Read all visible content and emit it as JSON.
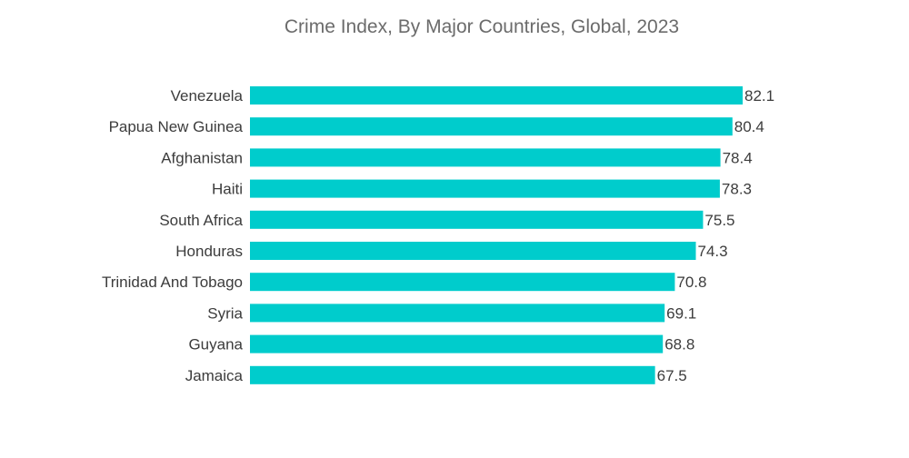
{
  "chart_data": {
    "type": "bar",
    "orientation": "horizontal",
    "title": "Crime Index, By Major Countries, Global, 2023",
    "categories": [
      "Venezuela",
      "Papua New Guinea",
      "Afghanistan",
      "Haiti",
      "South Africa",
      "Honduras",
      "Trinidad And Tobago",
      "Syria",
      "Guyana",
      "Jamaica"
    ],
    "values": [
      82.1,
      80.4,
      78.4,
      78.3,
      75.5,
      74.3,
      70.8,
      69.1,
      68.8,
      67.5
    ],
    "value_labels": [
      "82.1",
      "80.4",
      "78.4",
      "78.3",
      "75.5",
      "74.3",
      "70.8",
      "69.1",
      "68.8",
      "67.5"
    ],
    "xlim": [
      0,
      82.1
    ],
    "grid": false,
    "legend": "none",
    "bar_color": "#00cccc"
  }
}
